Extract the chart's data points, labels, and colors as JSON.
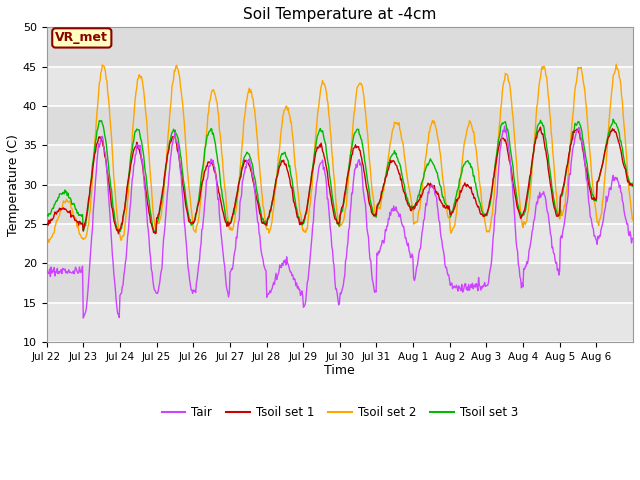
{
  "title": "Soil Temperature at -4cm",
  "xlabel": "Time",
  "ylabel": "Temperature (C)",
  "ylim": [
    10,
    50
  ],
  "annotation_text": "VR_met",
  "annotation_color": "#8B0000",
  "annotation_bg": "#FFFFC0",
  "grid_color": "white",
  "bg_color": "#DCDCDC",
  "line_colors": {
    "Tair": "#CC44FF",
    "Tsoil1": "#CC0000",
    "Tsoil2": "#FFA500",
    "Tsoil3": "#00BB00"
  },
  "legend_labels": [
    "Tair",
    "Tsoil set 1",
    "Tsoil set 2",
    "Tsoil set 3"
  ],
  "x_tick_labels": [
    "Jul 22",
    "Jul 23",
    "Jul 24",
    "Jul 25",
    "Jul 26",
    "Jul 27",
    "Jul 28",
    "Jul 29",
    "Jul 30",
    "Jul 31",
    "Aug 1",
    "Aug 2",
    "Aug 3",
    "Aug 4",
    "Aug 5",
    "Aug 6"
  ],
  "n_days": 16,
  "pts_per_day": 48,
  "tair_peaks": [
    19,
    36,
    35,
    36,
    33,
    33,
    20,
    33,
    33,
    27,
    30,
    17,
    37,
    29,
    37,
    31
  ],
  "tair_troughs": [
    19,
    13,
    16,
    16,
    16,
    19,
    16,
    15,
    16,
    21,
    18,
    17,
    17,
    19,
    23,
    23
  ],
  "tsoil2_peaks": [
    28,
    45,
    44,
    45,
    42,
    42,
    40,
    43,
    43,
    38,
    38,
    38,
    44,
    45,
    45,
    45
  ],
  "tsoil2_troughs": [
    23,
    23,
    23,
    25,
    24,
    24,
    24,
    24,
    25,
    27,
    25,
    24,
    24,
    25,
    26,
    25
  ],
  "tsoil1_peaks": [
    27,
    36,
    35,
    36,
    33,
    33,
    33,
    35,
    35,
    33,
    30,
    30,
    36,
    37,
    37,
    37
  ],
  "tsoil1_troughs": [
    25,
    24,
    24,
    25,
    25,
    25,
    25,
    25,
    26,
    27,
    27,
    26,
    26,
    26,
    28,
    30
  ],
  "tsoil3_peaks": [
    29,
    38,
    37,
    37,
    37,
    34,
    34,
    37,
    37,
    34,
    33,
    33,
    38,
    38,
    38,
    38
  ],
  "tsoil3_troughs": [
    26,
    24,
    24,
    25,
    25,
    25,
    25,
    25,
    26,
    27,
    27,
    26,
    26,
    26,
    28,
    30
  ]
}
